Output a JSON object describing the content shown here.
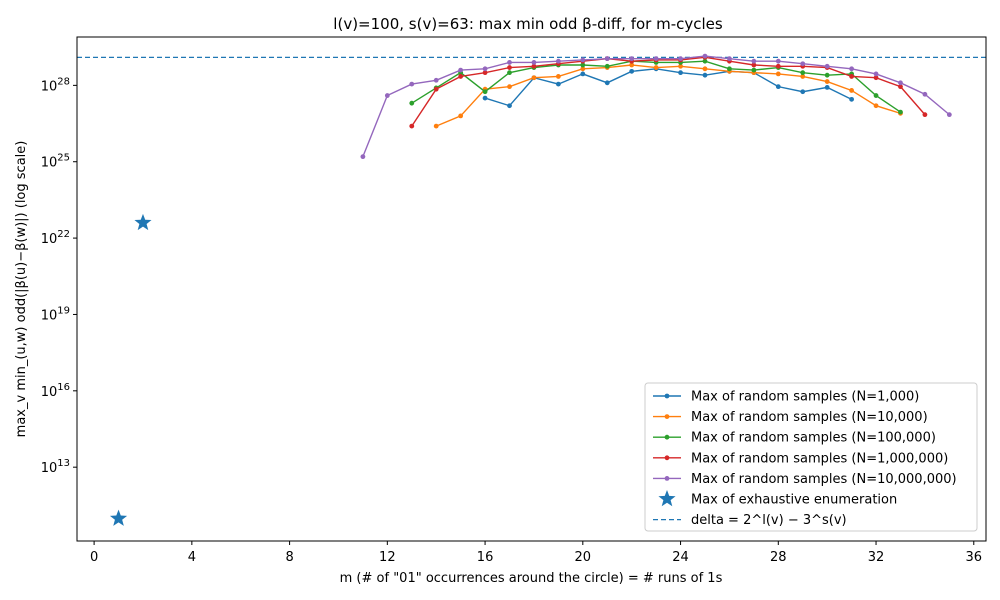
{
  "chart_data": {
    "type": "line",
    "title": "l(v)=100, s(v)=63: max min odd β-diff, for m-cycles",
    "xlabel": "m  (# of \"01\" occurrences around the circle)  = # runs of 1s",
    "ylabel": "max_v min_(u,w) odd(|β(u)−β(w)|)  (log scale)",
    "x_ticks": [
      0,
      4,
      8,
      12,
      16,
      20,
      24,
      28,
      32,
      36
    ],
    "y_ticks": [
      {
        "exp": 13,
        "label": "10^13"
      },
      {
        "exp": 16,
        "label": "10^16"
      },
      {
        "exp": 19,
        "label": "10^19"
      },
      {
        "exp": 22,
        "label": "10^22"
      },
      {
        "exp": 25,
        "label": "10^25"
      },
      {
        "exp": 28,
        "label": "10^28"
      }
    ],
    "xlim": [
      -0.7,
      36.5
    ],
    "ylim_exp": [
      10.1,
      29.9
    ],
    "y_scale": "log",
    "grid": false,
    "legend_position": "lower right",
    "series": [
      {
        "name": "Max of random samples (N=1,000)",
        "color": "#1f77b4",
        "x": [
          16,
          17,
          18,
          19,
          20,
          21,
          22,
          23,
          24,
          25,
          26,
          27,
          28,
          29,
          30,
          31
        ],
        "log10_y": [
          27.5,
          27.2,
          28.3,
          28.05,
          28.45,
          28.1,
          28.55,
          28.65,
          28.5,
          28.4,
          28.55,
          28.5,
          27.95,
          27.75,
          27.92,
          27.45
        ]
      },
      {
        "name": "Max of random samples (N=10,000)",
        "color": "#ff7f0e",
        "x": [
          14,
          15,
          16,
          17,
          18,
          19,
          20,
          21,
          22,
          23,
          24,
          25,
          26,
          27,
          28,
          29,
          30,
          31,
          32,
          33
        ],
        "log10_y": [
          26.4,
          26.8,
          27.85,
          27.95,
          28.3,
          28.35,
          28.65,
          28.7,
          28.8,
          28.7,
          28.75,
          28.65,
          28.55,
          28.5,
          28.45,
          28.35,
          28.15,
          27.8,
          27.2,
          26.9
        ]
      },
      {
        "name": "Max of random samples (N=100,000)",
        "color": "#2ca02c",
        "x": [
          13,
          14,
          15,
          16,
          17,
          18,
          19,
          20,
          21,
          22,
          23,
          24,
          25,
          26,
          27,
          28,
          29,
          30,
          31,
          32,
          33
        ],
        "log10_y": [
          27.3,
          27.9,
          28.5,
          27.75,
          28.5,
          28.7,
          28.8,
          28.8,
          28.75,
          28.95,
          28.9,
          28.9,
          28.95,
          28.65,
          28.6,
          28.7,
          28.5,
          28.4,
          28.45,
          27.6,
          26.95
        ]
      },
      {
        "name": "Max of random samples (N=1,000,000)",
        "color": "#d62728",
        "x": [
          13,
          14,
          15,
          16,
          17,
          18,
          19,
          20,
          21,
          22,
          23,
          24,
          25,
          26,
          27,
          28,
          29,
          30,
          31,
          32,
          33,
          34
        ],
        "log10_y": [
          26.4,
          27.85,
          28.35,
          28.5,
          28.7,
          28.75,
          28.85,
          28.95,
          29.05,
          28.95,
          29.0,
          29.0,
          29.1,
          28.95,
          28.8,
          28.75,
          28.75,
          28.7,
          28.35,
          28.3,
          27.95,
          26.85
        ]
      },
      {
        "name": "Max of random samples (N=10,000,000)",
        "color": "#9467bd",
        "x": [
          11,
          12,
          13,
          14,
          15,
          16,
          17,
          18,
          19,
          20,
          21,
          22,
          23,
          24,
          25,
          26,
          27,
          28,
          29,
          30,
          31,
          32,
          33,
          34,
          35
        ],
        "log10_y": [
          25.2,
          27.6,
          28.05,
          28.2,
          28.6,
          28.65,
          28.9,
          28.9,
          28.95,
          29.0,
          29.05,
          29.05,
          29.05,
          29.05,
          29.15,
          29.05,
          28.95,
          28.95,
          28.85,
          28.75,
          28.65,
          28.45,
          28.1,
          27.65,
          26.85
        ]
      }
    ],
    "exhaustive": {
      "name": "Max of exhaustive enumeration",
      "color": "#1f77b4",
      "x": [
        1,
        2
      ],
      "log10_y": [
        10.98,
        22.6
      ]
    },
    "delta_line": {
      "name": "delta = 2^l(v) − 3^s(v)",
      "color": "#1f77b4",
      "log10_y": 29.1
    }
  }
}
